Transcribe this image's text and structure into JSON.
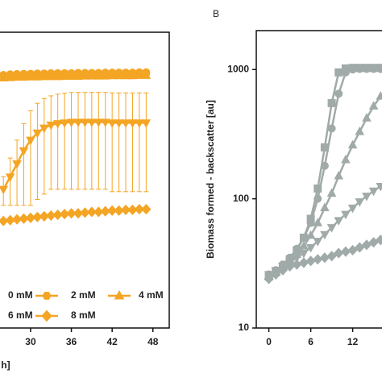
{
  "chart_data": [
    {
      "type": "line",
      "x_label": "h]",
      "log_y": true,
      "x": [
        26,
        27,
        28,
        29,
        30,
        31,
        32,
        33,
        34,
        35,
        36,
        37,
        38,
        39,
        40,
        41,
        42,
        43,
        44,
        45,
        46,
        47
      ],
      "xlim": [
        25.5,
        50.4
      ],
      "xticks": [
        30,
        36,
        42,
        48
      ],
      "ylim": [
        10,
        2000
      ],
      "legend": "bottom-left",
      "series": [
        {
          "name": "0 mM",
          "color": "#f4a524",
          "marker": "circle",
          "values": [
            930,
            940,
            945,
            950,
            950,
            955,
            955,
            960,
            960,
            960,
            960,
            965,
            965,
            965,
            965,
            970,
            970,
            970,
            970,
            970,
            975,
            975
          ]
        },
        {
          "name": "2 mM",
          "color": "#f4a524",
          "marker": "hexagon",
          "values": [
            900,
            905,
            910,
            915,
            915,
            920,
            920,
            925,
            925,
            925,
            930,
            930,
            930,
            930,
            935,
            935,
            935,
            935,
            940,
            940,
            940,
            940
          ]
        },
        {
          "name": "4 mM",
          "color": "#f4a524",
          "marker": "triangle",
          "values": [
            880,
            885,
            890,
            890,
            895,
            895,
            900,
            900,
            900,
            905,
            905,
            905,
            910,
            910,
            910,
            910,
            915,
            915,
            915,
            915,
            920,
            920
          ]
        },
        {
          "name": "6 mM",
          "color": "#f4a524",
          "marker": "triangle-down",
          "values": [
            120,
            150,
            190,
            240,
            290,
            330,
            360,
            380,
            390,
            395,
            400,
            400,
            400,
            400,
            400,
            400,
            395,
            395,
            395,
            395,
            395,
            395
          ],
          "errors": [
            30,
            60,
            100,
            150,
            200,
            230,
            250,
            260,
            270,
            275,
            280,
            280,
            280,
            280,
            280,
            280,
            280,
            280,
            280,
            280,
            280,
            280
          ]
        },
        {
          "name": "8 mM",
          "color": "#f4a524",
          "marker": "diamond",
          "values": [
            68,
            69,
            70,
            71,
            72,
            73,
            74,
            75,
            76,
            77,
            78,
            78,
            79,
            80,
            80,
            81,
            82,
            82,
            83,
            83,
            84,
            84
          ]
        }
      ]
    },
    {
      "type": "line",
      "title": "B",
      "y_label": "Biomass formed - backscatter [au]",
      "log_y": true,
      "x": [
        0,
        1,
        2,
        3,
        4,
        5,
        6,
        7,
        8,
        9,
        10,
        11,
        12,
        13,
        14,
        15,
        16
      ],
      "xlim": [
        -1.8,
        16.2
      ],
      "xticks": [
        0,
        6,
        12
      ],
      "ylim": [
        10,
        2000
      ],
      "yticks": [
        10,
        100,
        1000
      ],
      "series": [
        {
          "color": "#a0aaa8",
          "marker": "square",
          "values": [
            25,
            27,
            30,
            34,
            40,
            50,
            70,
            120,
            250,
            550,
            950,
            1020,
            1030,
            1030,
            1030,
            1030,
            1030
          ]
        },
        {
          "color": "#a0aaa8",
          "marker": "circle",
          "values": [
            26,
            28,
            31,
            35,
            41,
            50,
            65,
            100,
            180,
            350,
            650,
            950,
            1000,
            1010,
            1010,
            1010,
            1010
          ]
        },
        {
          "color": "#a0aaa8",
          "marker": "triangle",
          "values": [
            25,
            27,
            30,
            33,
            37,
            43,
            52,
            65,
            85,
            110,
            150,
            200,
            260,
            330,
            420,
            520,
            620
          ]
        },
        {
          "color": "#a0aaa8",
          "marker": "triangle-down",
          "values": [
            26,
            28,
            30,
            32,
            35,
            38,
            42,
            47,
            53,
            60,
            68,
            76,
            85,
            95,
            105,
            115,
            125
          ]
        },
        {
          "color": "#a0aaa8",
          "marker": "diamond",
          "values": [
            24,
            26,
            28,
            30,
            31,
            32,
            33,
            34,
            35,
            36,
            38,
            39,
            40,
            42,
            44,
            46,
            48
          ]
        }
      ]
    }
  ]
}
